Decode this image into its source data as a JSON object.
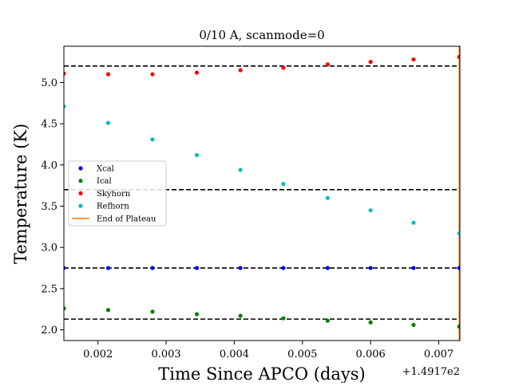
{
  "chart_data": {
    "type": "scatter",
    "title": "0/10 A, scanmode=0",
    "xlabel": "Time Since APCO (days)",
    "ylabel": "Temperature (K)",
    "x_offset_text": "+1.4917e2",
    "xlim": [
      0.0015,
      0.00731
    ],
    "ylim": [
      1.87,
      5.44
    ],
    "xticks": [
      0.002,
      0.003,
      0.004,
      0.005,
      0.006,
      0.007
    ],
    "xtick_labels": [
      "0.002",
      "0.003",
      "0.004",
      "0.005",
      "0.006",
      "0.007"
    ],
    "yticks": [
      2.0,
      2.5,
      3.0,
      3.5,
      4.0,
      4.5,
      5.0
    ],
    "ytick_labels": [
      "2.0",
      "2.5",
      "3.0",
      "3.5",
      "4.0",
      "4.5",
      "5.0"
    ],
    "hlines": [
      5.2,
      3.7,
      2.75,
      2.13
    ],
    "vline_x": 0.0073,
    "legend_placement": "center-left",
    "grid": false,
    "x": [
      0.0015,
      0.00215,
      0.0028,
      0.00345,
      0.00409,
      0.00472,
      0.00537,
      0.006,
      0.00663,
      0.0073
    ],
    "series": [
      {
        "name": "Xcal",
        "color": "#0000ff",
        "marker": "point",
        "values": [
          2.75,
          2.75,
          2.75,
          2.75,
          2.75,
          2.75,
          2.75,
          2.75,
          2.75,
          2.75
        ]
      },
      {
        "name": "Ical",
        "color": "#008000",
        "marker": "point",
        "values": [
          2.26,
          2.24,
          2.22,
          2.19,
          2.17,
          2.14,
          2.11,
          2.09,
          2.06,
          2.04
        ]
      },
      {
        "name": "Skyhorn",
        "color": "#ff0000",
        "marker": "point",
        "values": [
          5.11,
          5.1,
          5.1,
          5.12,
          5.15,
          5.18,
          5.22,
          5.25,
          5.28,
          5.31
        ]
      },
      {
        "name": "Refhorn",
        "color": "#00bfbf",
        "marker": "point",
        "values": [
          4.71,
          4.51,
          4.31,
          4.12,
          3.94,
          3.77,
          3.6,
          3.45,
          3.3,
          3.17
        ]
      },
      {
        "name": "End of Plateau",
        "color": "#ff7f0e",
        "marker": "line",
        "values": []
      }
    ]
  }
}
